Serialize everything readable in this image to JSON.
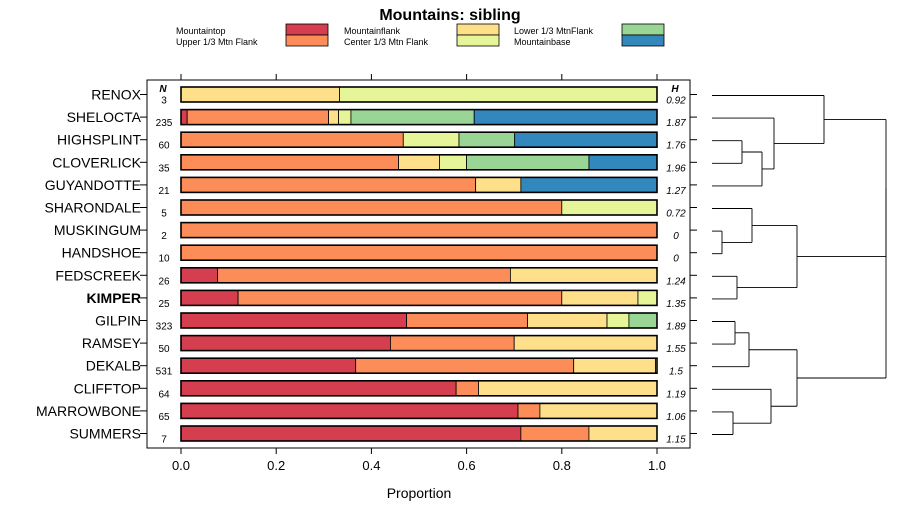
{
  "chart_data": {
    "type": "stacked-bar-horizontal",
    "title": "Mountains: sibling",
    "xlabel": "Proportion",
    "ylabel": "",
    "xlim": [
      0,
      1
    ],
    "xticks": [
      "0.0",
      "0.2",
      "0.4",
      "0.6",
      "0.8",
      "1.0"
    ],
    "xtick_values": [
      0,
      0.2,
      0.4,
      0.6,
      0.8,
      1.0
    ],
    "n_header": "N",
    "h_header": "H",
    "highlighted": "KIMPER",
    "legend_position": "top",
    "legend": [
      {
        "label": "Mountaintop",
        "color": "#d53e4f"
      },
      {
        "label": "Upper 1/3 Mtn Flank",
        "color": "#fc8d59"
      },
      {
        "label": "Mountainflank",
        "color": "#fee08b"
      },
      {
        "label": "Center 1/3 Mtn Flank",
        "color": "#e6f598"
      },
      {
        "label": "Lower 1/3 MtnFlank",
        "color": "#99d594"
      },
      {
        "label": "Mountainbase",
        "color": "#3288bd"
      }
    ],
    "categories": [
      "Mountaintop",
      "Upper 1/3 Mtn Flank",
      "Mountainflank",
      "Center 1/3 Mtn Flank",
      "Lower 1/3 MtnFlank",
      "Mountainbase"
    ],
    "rows": [
      {
        "name": "RENOX",
        "n": "3",
        "h": "0.92",
        "values": [
          0,
          0,
          0.333,
          0.667,
          0,
          0
        ]
      },
      {
        "name": "SHELOCTA",
        "n": "235",
        "h": "1.87",
        "values": [
          0.013,
          0.297,
          0.021,
          0.026,
          0.259,
          0.384
        ]
      },
      {
        "name": "HIGHSPLINT",
        "n": "60",
        "h": "1.76",
        "values": [
          0,
          0.467,
          0,
          0.117,
          0.117,
          0.299
        ]
      },
      {
        "name": "CLOVERLICK",
        "n": "35",
        "h": "1.96",
        "values": [
          0,
          0.457,
          0.086,
          0.057,
          0.257,
          0.143
        ]
      },
      {
        "name": "GUYANDOTTE",
        "n": "21",
        "h": "1.27",
        "values": [
          0,
          0.619,
          0.095,
          0,
          0,
          0.286
        ]
      },
      {
        "name": "SHARONDALE",
        "n": "5",
        "h": "0.72",
        "values": [
          0,
          0.8,
          0,
          0.2,
          0,
          0
        ]
      },
      {
        "name": "MUSKINGUM",
        "n": "2",
        "h": "0",
        "values": [
          0,
          1,
          0,
          0,
          0,
          0
        ]
      },
      {
        "name": "HANDSHOE",
        "n": "10",
        "h": "0",
        "values": [
          0,
          1,
          0,
          0,
          0,
          0
        ]
      },
      {
        "name": "FEDSCREEK",
        "n": "26",
        "h": "1.24",
        "values": [
          0.077,
          0.615,
          0.308,
          0,
          0,
          0
        ]
      },
      {
        "name": "KIMPER",
        "n": "25",
        "h": "1.35",
        "values": [
          0.12,
          0.68,
          0.16,
          0.04,
          0,
          0
        ]
      },
      {
        "name": "GILPIN",
        "n": "323",
        "h": "1.89",
        "values": [
          0.474,
          0.254,
          0.167,
          0.046,
          0.059,
          0
        ]
      },
      {
        "name": "RAMSEY",
        "n": "50",
        "h": "1.55",
        "values": [
          0.44,
          0.26,
          0.3,
          0,
          0,
          0
        ]
      },
      {
        "name": "DEKALB",
        "n": "531",
        "h": "1.5",
        "values": [
          0.367,
          0.458,
          0.172,
          0.003,
          0,
          0
        ]
      },
      {
        "name": "CLIFFTOP",
        "n": "64",
        "h": "1.19",
        "values": [
          0.578,
          0.047,
          0.375,
          0,
          0,
          0
        ]
      },
      {
        "name": "MARROWBONE",
        "n": "65",
        "h": "1.06",
        "values": [
          0.708,
          0.046,
          0.246,
          0,
          0,
          0
        ]
      },
      {
        "name": "SUMMERS",
        "n": "7",
        "h": "1.15",
        "values": [
          0.714,
          0.143,
          0.143,
          0,
          0,
          0
        ]
      }
    ]
  }
}
